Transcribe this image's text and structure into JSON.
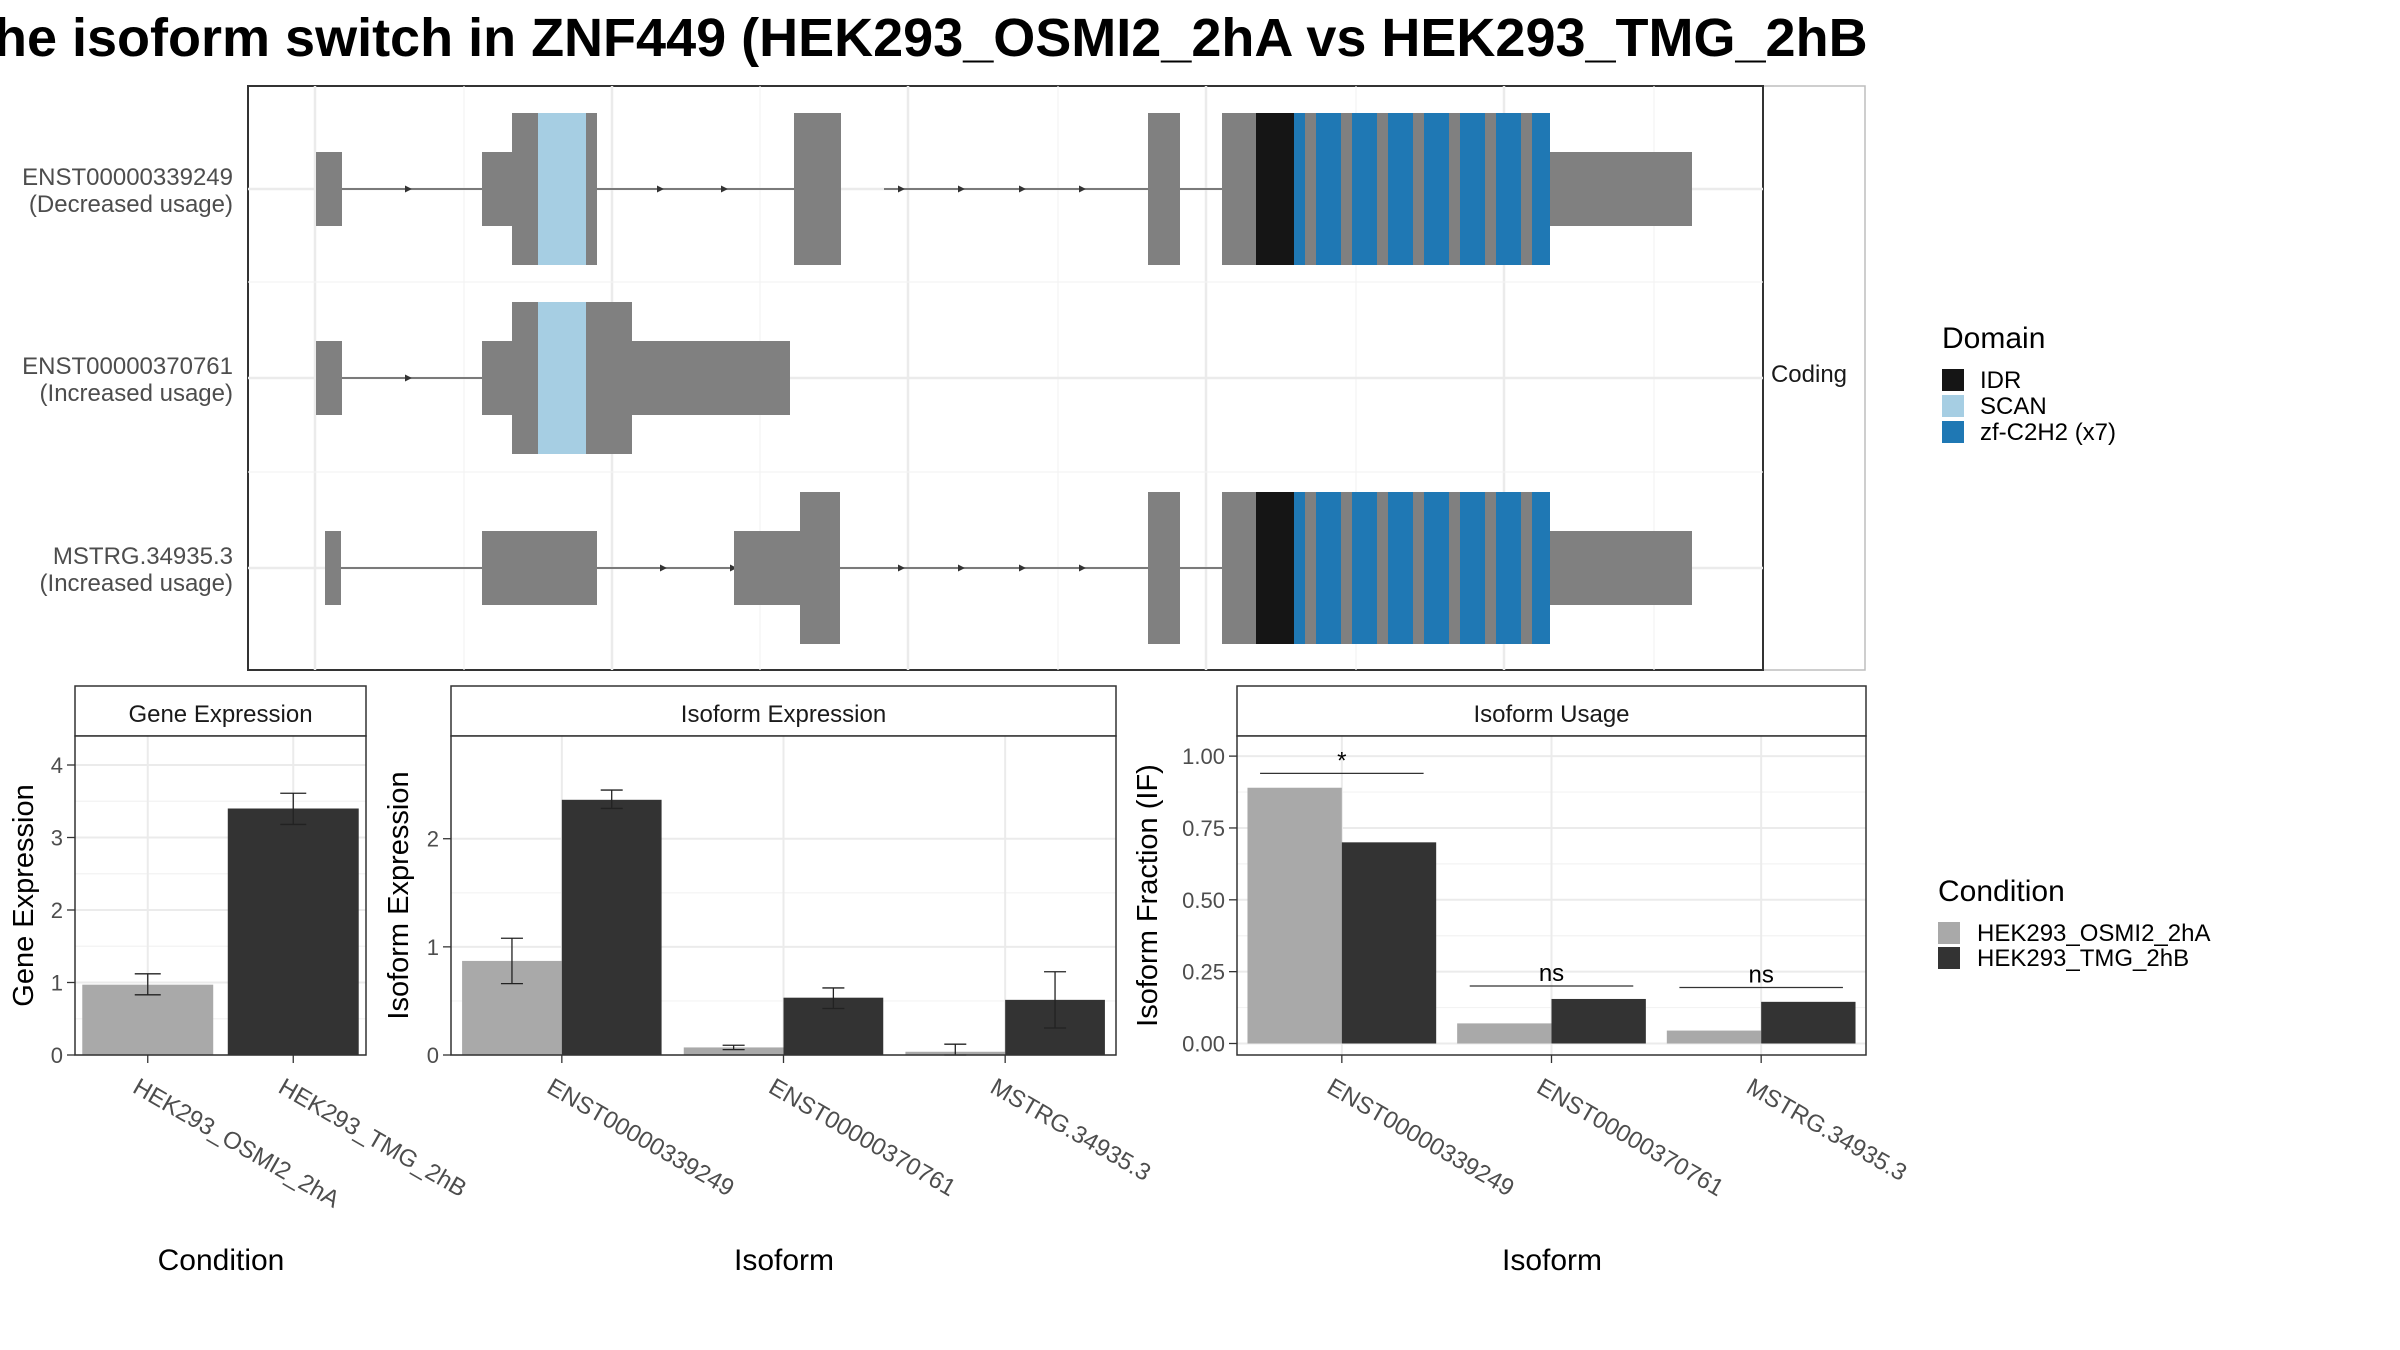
{
  "title": "he isoform switch in ZNF449 (HEK293_OSMI2_2hA vs HEK293_TMG_2hB",
  "colors": {
    "exon": "#808080",
    "idr": "#151515",
    "scan": "#a6cee3",
    "znf": "#1f78b4",
    "cond_a": "#a9a9a9",
    "cond_b": "#333333"
  },
  "structure": {
    "facet_label": "Coding",
    "transcripts": [
      {
        "id": "ENST00000339249",
        "usage": "(Decreased usage)"
      },
      {
        "id": "ENST00000370761",
        "usage": "(Increased usage)"
      },
      {
        "id": "MSTRG.34935.3",
        "usage": "(Increased usage)"
      }
    ]
  },
  "domain_legend": {
    "title": "Domain",
    "items": [
      {
        "label": "IDR",
        "color": "#151515"
      },
      {
        "label": "SCAN",
        "color": "#a6cee3"
      },
      {
        "label": "zf-C2H2 (x7)",
        "color": "#1f78b4"
      }
    ]
  },
  "condition_legend": {
    "title": "Condition",
    "items": [
      {
        "label": "HEK293_OSMI2_2hA",
        "color": "#a9a9a9"
      },
      {
        "label": "HEK293_TMG_2hB",
        "color": "#333333"
      }
    ]
  },
  "chart_data": [
    {
      "type": "bar",
      "title": "Gene Expression",
      "xlabel": "Condition",
      "ylabel": "Gene Expression",
      "categories": [
        "HEK293_OSMI2_2hA",
        "HEK293_TMG_2hB"
      ],
      "values": [
        0.97,
        3.4
      ],
      "errors": [
        [
          0.83,
          1.12
        ],
        [
          3.18,
          3.61
        ]
      ],
      "ylim": [
        0,
        4.4
      ],
      "yticks": [
        0,
        1,
        2,
        3,
        4
      ],
      "ytick_labels": [
        "0",
        "1",
        "2",
        "3",
        "4"
      ]
    },
    {
      "type": "bar",
      "title": "Isoform Expression",
      "xlabel": "Isoform",
      "ylabel": "Isoform Expression",
      "categories": [
        "ENST00000339249",
        "ENST00000370761",
        "MSTRG.34935.3"
      ],
      "series": [
        {
          "name": "HEK293_OSMI2_2hA",
          "values": [
            0.87,
            0.07,
            0.03
          ],
          "errors": [
            [
              0.66,
              1.08
            ],
            [
              0.05,
              0.09
            ],
            [
              0.0,
              0.1
            ]
          ]
        },
        {
          "name": "HEK293_TMG_2hB",
          "values": [
            2.36,
            0.53,
            0.51
          ],
          "errors": [
            [
              2.28,
              2.45
            ],
            [
              0.43,
              0.62
            ],
            [
              0.25,
              0.77
            ]
          ]
        }
      ],
      "ylim": [
        0,
        2.95
      ],
      "yticks": [
        0,
        1,
        2
      ],
      "ytick_labels": [
        "0",
        "1",
        "2"
      ]
    },
    {
      "type": "bar",
      "title": "Isoform Usage",
      "xlabel": "Isoform",
      "ylabel": "Isoform Fraction (IF)",
      "categories": [
        "ENST00000339249",
        "ENST00000370761",
        "MSTRG.34935.3"
      ],
      "series": [
        {
          "name": "HEK293_OSMI2_2hA",
          "values": [
            0.89,
            0.07,
            0.045
          ]
        },
        {
          "name": "HEK293_TMG_2hB",
          "values": [
            0.7,
            0.155,
            0.145
          ]
        }
      ],
      "significance": [
        "*",
        "ns",
        "ns"
      ],
      "significance_y": [
        0.94,
        0.2,
        0.195
      ],
      "ylim": [
        -0.04,
        1.07
      ],
      "yticks": [
        0,
        0.25,
        0.5,
        0.75,
        1.0
      ],
      "ytick_labels": [
        "0.00",
        "0.25",
        "0.50",
        "0.75",
        "1.00"
      ]
    }
  ]
}
